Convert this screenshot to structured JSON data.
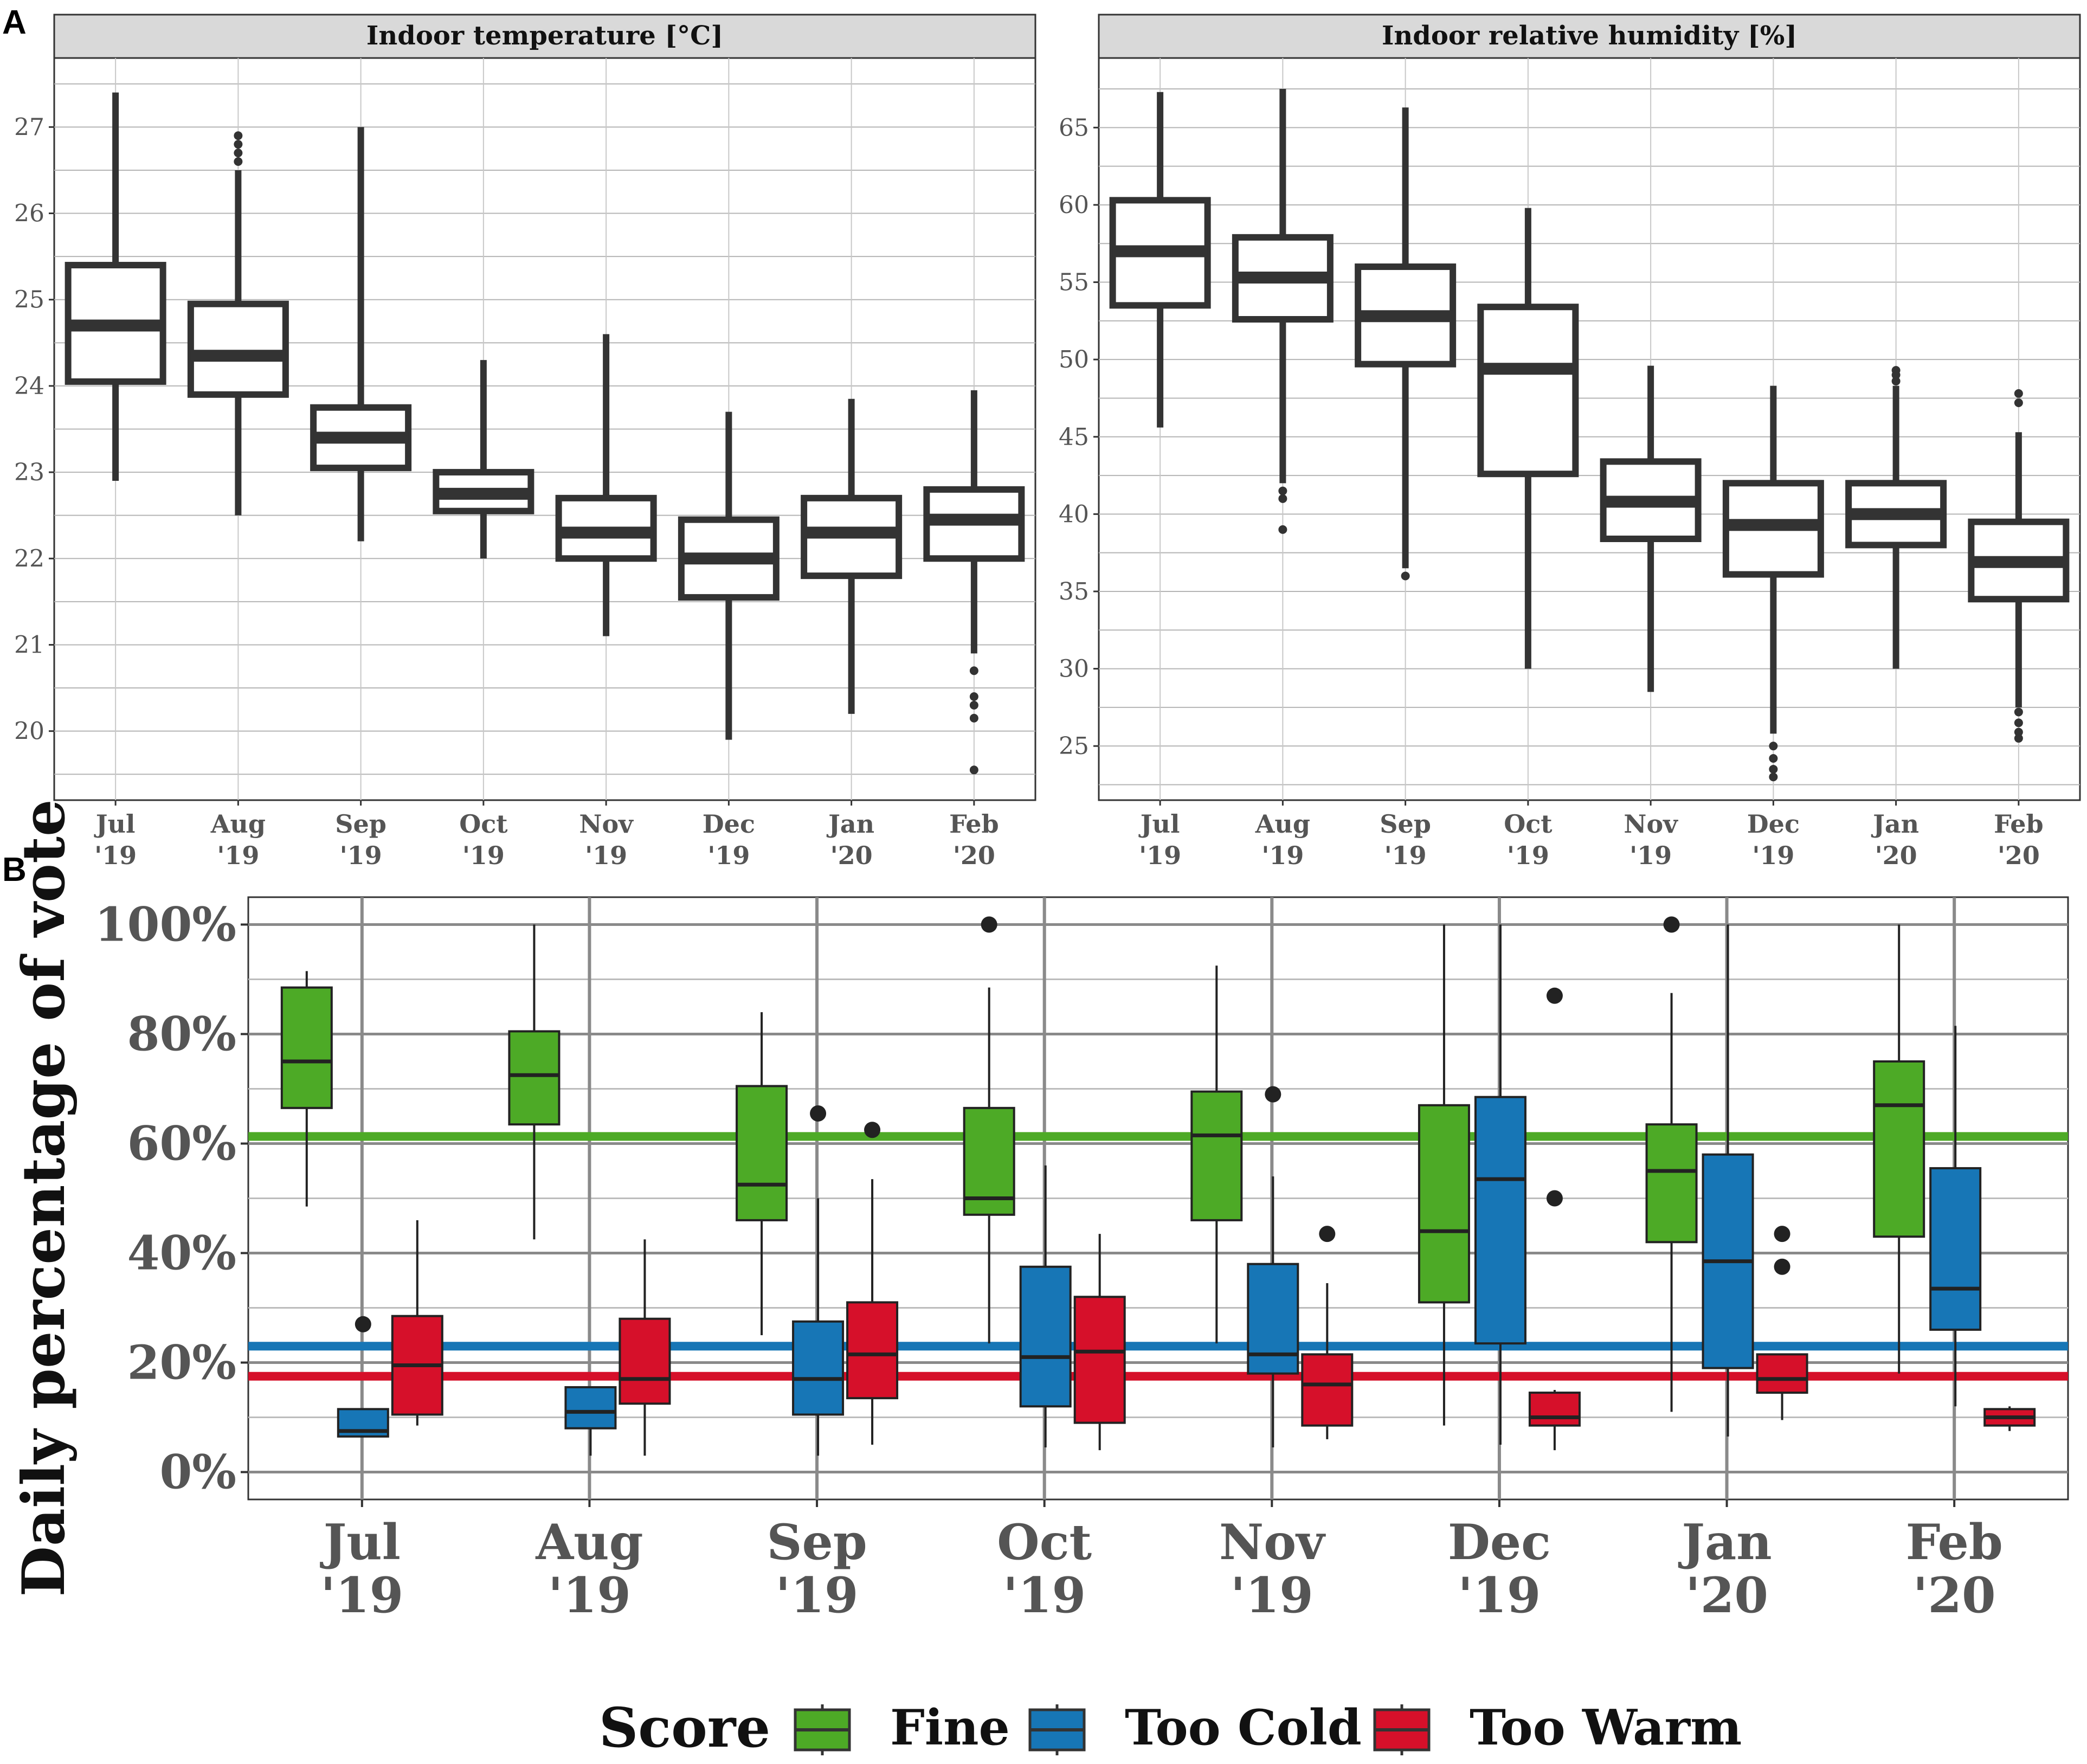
{
  "panel_labels": [
    "A",
    "B"
  ],
  "months": [
    "Jul",
    "Aug",
    "Sep",
    "Oct",
    "Nov",
    "Dec",
    "Jan",
    "Feb"
  ],
  "years": [
    "'19",
    "'19",
    "'19",
    "'19",
    "'19",
    "'19",
    "'20",
    "'20"
  ],
  "colors": {
    "fine": "#4daa26",
    "too_cold": "#1776b6",
    "too_warm": "#d6102a",
    "box_dark": "#333333",
    "strip": "#d9d9d9",
    "grid": "#bfbfbf"
  },
  "chart_data": [
    {
      "type": "boxplot",
      "panel": "A",
      "title": "Indoor temperature [°C]",
      "ylim": [
        19.2,
        27.8
      ],
      "yticks": [
        20,
        21,
        22,
        23,
        24,
        25,
        26,
        27
      ],
      "categories": [
        "Jul '19",
        "Aug '19",
        "Sep '19",
        "Oct '19",
        "Nov '19",
        "Dec '19",
        "Jan '20",
        "Feb '20"
      ],
      "boxes": [
        {
          "min": 22.9,
          "q1": 24.05,
          "median": 24.7,
          "q3": 25.4,
          "max": 27.4,
          "outliers": []
        },
        {
          "min": 22.5,
          "q1": 23.9,
          "median": 24.35,
          "q3": 24.95,
          "max": 26.5,
          "outliers": [
            26.6,
            26.7,
            26.8,
            26.9
          ]
        },
        {
          "min": 22.2,
          "q1": 23.05,
          "median": 23.4,
          "q3": 23.75,
          "max": 27.0,
          "outliers": []
        },
        {
          "min": 22.0,
          "q1": 22.55,
          "median": 22.75,
          "q3": 23.0,
          "max": 24.3,
          "outliers": []
        },
        {
          "min": 21.1,
          "q1": 22.0,
          "median": 22.3,
          "q3": 22.7,
          "max": 24.6,
          "outliers": []
        },
        {
          "min": 19.9,
          "q1": 21.55,
          "median": 22.0,
          "q3": 22.45,
          "max": 23.7,
          "outliers": []
        },
        {
          "min": 20.2,
          "q1": 21.8,
          "median": 22.3,
          "q3": 22.7,
          "max": 23.85,
          "outliers": []
        },
        {
          "min": 20.9,
          "q1": 22.0,
          "median": 22.45,
          "q3": 22.8,
          "max": 23.95,
          "outliers": [
            20.7,
            20.4,
            20.3,
            20.15,
            19.55
          ]
        }
      ]
    },
    {
      "type": "boxplot",
      "panel": "A",
      "title": "Indoor relative humidity [%]",
      "ylim": [
        21.5,
        69.5
      ],
      "yticks": [
        25,
        30,
        35,
        40,
        45,
        50,
        55,
        60,
        65
      ],
      "categories": [
        "Jul '19",
        "Aug '19",
        "Sep '19",
        "Oct '19",
        "Nov '19",
        "Dec '19",
        "Jan '20",
        "Feb '20"
      ],
      "boxes": [
        {
          "min": 45.6,
          "q1": 53.5,
          "median": 57.0,
          "q3": 60.3,
          "max": 67.3,
          "outliers": []
        },
        {
          "min": 42.0,
          "q1": 52.6,
          "median": 55.3,
          "q3": 57.9,
          "max": 67.5,
          "outliers": [
            41.5,
            41.0,
            39.0
          ]
        },
        {
          "min": 36.5,
          "q1": 49.7,
          "median": 52.8,
          "q3": 56.0,
          "max": 66.3,
          "outliers": [
            36.0
          ]
        },
        {
          "min": 30.0,
          "q1": 42.6,
          "median": 49.4,
          "q3": 53.4,
          "max": 59.8,
          "outliers": []
        },
        {
          "min": 28.5,
          "q1": 38.4,
          "median": 40.8,
          "q3": 43.4,
          "max": 49.6,
          "outliers": []
        },
        {
          "min": 25.8,
          "q1": 36.1,
          "median": 39.3,
          "q3": 42.0,
          "max": 48.3,
          "outliers": [
            25.0,
            24.2,
            23.5,
            23.0
          ]
        },
        {
          "min": 30.0,
          "q1": 38.0,
          "median": 40.0,
          "q3": 42.0,
          "max": 48.3,
          "outliers": [
            48.6,
            49.0,
            49.3
          ]
        },
        {
          "min": 27.5,
          "q1": 34.5,
          "median": 36.9,
          "q3": 39.5,
          "max": 45.3,
          "outliers": [
            47.2,
            47.8,
            27.2,
            26.5,
            25.9,
            25.5
          ]
        }
      ]
    },
    {
      "type": "boxplot",
      "panel": "B",
      "ylabel": "Daily percentage of vote",
      "ylim": [
        -5,
        105
      ],
      "yticks": [
        0,
        20,
        40,
        60,
        80,
        100
      ],
      "ytick_labels": [
        "0%",
        "20%",
        "40%",
        "60%",
        "80%",
        "100%"
      ],
      "categories": [
        "Jul '19",
        "Aug '19",
        "Sep '19",
        "Oct '19",
        "Nov '19",
        "Dec '19",
        "Jan '20",
        "Feb '20"
      ],
      "reference_lines": {
        "Fine": 61.3,
        "Too Cold": 23.0,
        "Too Warm": 17.5
      },
      "legend": {
        "title": "Score",
        "position": "bottom",
        "entries": [
          "Fine",
          "Too Cold",
          "Too Warm"
        ]
      },
      "series": [
        {
          "name": "Fine",
          "boxes": [
            {
              "min": 48.5,
              "q1": 66.5,
              "median": 75.0,
              "q3": 88.5,
              "max": 91.5,
              "outliers": []
            },
            {
              "min": 42.5,
              "q1": 63.5,
              "median": 72.5,
              "q3": 80.5,
              "max": 100,
              "outliers": []
            },
            {
              "min": 25.0,
              "q1": 46.0,
              "median": 52.5,
              "q3": 70.5,
              "max": 84.0,
              "outliers": []
            },
            {
              "min": 23.5,
              "q1": 47.0,
              "median": 50.0,
              "q3": 66.5,
              "max": 88.5,
              "outliers": [
                100
              ]
            },
            {
              "min": 23.5,
              "q1": 46.0,
              "median": 61.5,
              "q3": 69.5,
              "max": 92.5,
              "outliers": []
            },
            {
              "min": 8.5,
              "q1": 31.0,
              "median": 44.0,
              "q3": 67.0,
              "max": 100,
              "outliers": []
            },
            {
              "min": 11.0,
              "q1": 42.0,
              "median": 55.0,
              "q3": 63.5,
              "max": 87.5,
              "outliers": [
                100
              ]
            },
            {
              "min": 18.0,
              "q1": 43.0,
              "median": 67.0,
              "q3": 75.0,
              "max": 100,
              "outliers": []
            }
          ]
        },
        {
          "name": "Too Cold",
          "boxes": [
            {
              "min": 6.5,
              "q1": 6.5,
              "median": 7.5,
              "q3": 11.5,
              "max": 11.5,
              "outliers": [
                27.0
              ]
            },
            {
              "min": 3.0,
              "q1": 8.0,
              "median": 11.0,
              "q3": 15.5,
              "max": 15.5,
              "outliers": []
            },
            {
              "min": 3.0,
              "q1": 10.5,
              "median": 17.0,
              "q3": 27.5,
              "max": 50.0,
              "outliers": [
                65.5
              ]
            },
            {
              "min": 4.5,
              "q1": 12.0,
              "median": 21.0,
              "q3": 37.5,
              "max": 56.0,
              "outliers": []
            },
            {
              "min": 4.5,
              "q1": 18.0,
              "median": 21.5,
              "q3": 38.0,
              "max": 54.0,
              "outliers": [
                69.0
              ]
            },
            {
              "min": 5.0,
              "q1": 23.5,
              "median": 53.5,
              "q3": 68.5,
              "max": 100,
              "outliers": []
            },
            {
              "min": 6.5,
              "q1": 19.0,
              "median": 38.5,
              "q3": 58.0,
              "max": 100,
              "outliers": []
            },
            {
              "min": 12.0,
              "q1": 26.0,
              "median": 33.5,
              "q3": 55.5,
              "max": 81.5,
              "outliers": []
            }
          ]
        },
        {
          "name": "Too Warm",
          "boxes": [
            {
              "min": 8.5,
              "q1": 10.5,
              "median": 19.5,
              "q3": 28.5,
              "max": 46.0,
              "outliers": []
            },
            {
              "min": 3.0,
              "q1": 12.5,
              "median": 17.0,
              "q3": 28.0,
              "max": 42.5,
              "outliers": []
            },
            {
              "min": 5.0,
              "q1": 13.5,
              "median": 21.5,
              "q3": 31.0,
              "max": 53.5,
              "outliers": [
                62.5
              ]
            },
            {
              "min": 4.0,
              "q1": 9.0,
              "median": 22.0,
              "q3": 32.0,
              "max": 43.5,
              "outliers": []
            },
            {
              "min": 6.0,
              "q1": 8.5,
              "median": 16.0,
              "q3": 21.5,
              "max": 34.5,
              "outliers": [
                43.5
              ]
            },
            {
              "min": 4.0,
              "q1": 8.5,
              "median": 10.0,
              "q3": 14.5,
              "max": 15.0,
              "outliers": [
                87.0,
                50.0
              ]
            },
            {
              "min": 9.5,
              "q1": 14.5,
              "median": 17.0,
              "q3": 21.5,
              "max": 21.5,
              "outliers": [
                43.5,
                37.5
              ]
            },
            {
              "min": 7.5,
              "q1": 8.5,
              "median": 10.0,
              "q3": 11.5,
              "max": 12.0,
              "outliers": []
            }
          ]
        }
      ]
    }
  ]
}
